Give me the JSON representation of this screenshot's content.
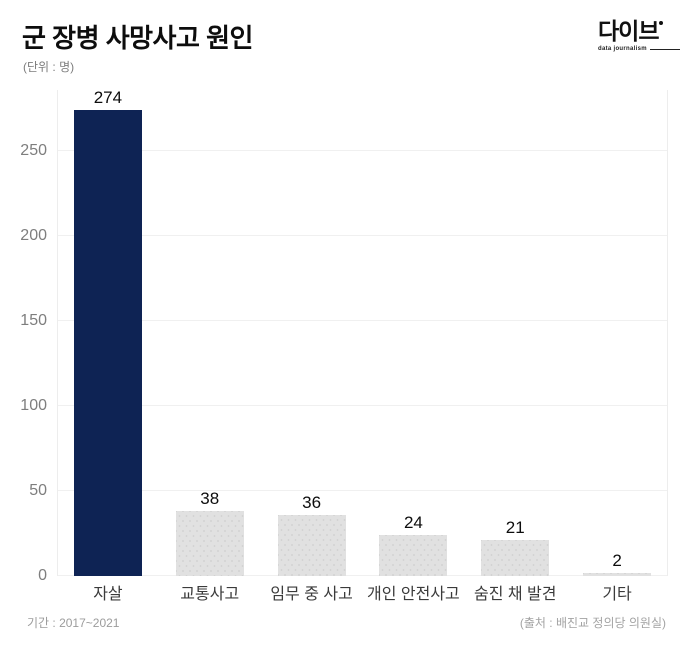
{
  "header": {
    "title": "군 장병 사망사고 원인",
    "unit_label": "(단위 : 명)"
  },
  "logo": {
    "wordmark": "다이브",
    "tagline": "data journalism"
  },
  "chart_data": {
    "type": "bar",
    "title": "군 장병 사망사고 원인",
    "unit_label": "(단위 : 명)",
    "categories": [
      "자살",
      "교통사고",
      "임무 중 사고",
      "개인 안전사고",
      "숨진 채 발견",
      "기타"
    ],
    "values": [
      274,
      38,
      36,
      24,
      21,
      2
    ],
    "yticks": [
      0,
      50,
      100,
      150,
      200,
      250
    ],
    "ylim": [
      0,
      286
    ],
    "grid": true,
    "legend": "none",
    "highlight_color": "#0e2354",
    "default_color": "#e1e1e1",
    "bar_colors": [
      "#0e2354",
      "#e1e1e1",
      "#e1e1e1",
      "#e1e1e1",
      "#e1e1e1",
      "#e1e1e1"
    ]
  },
  "footer": {
    "period": "기간 : 2017~2021",
    "source": "(출처 : 배진교 정의당 의원실)"
  }
}
